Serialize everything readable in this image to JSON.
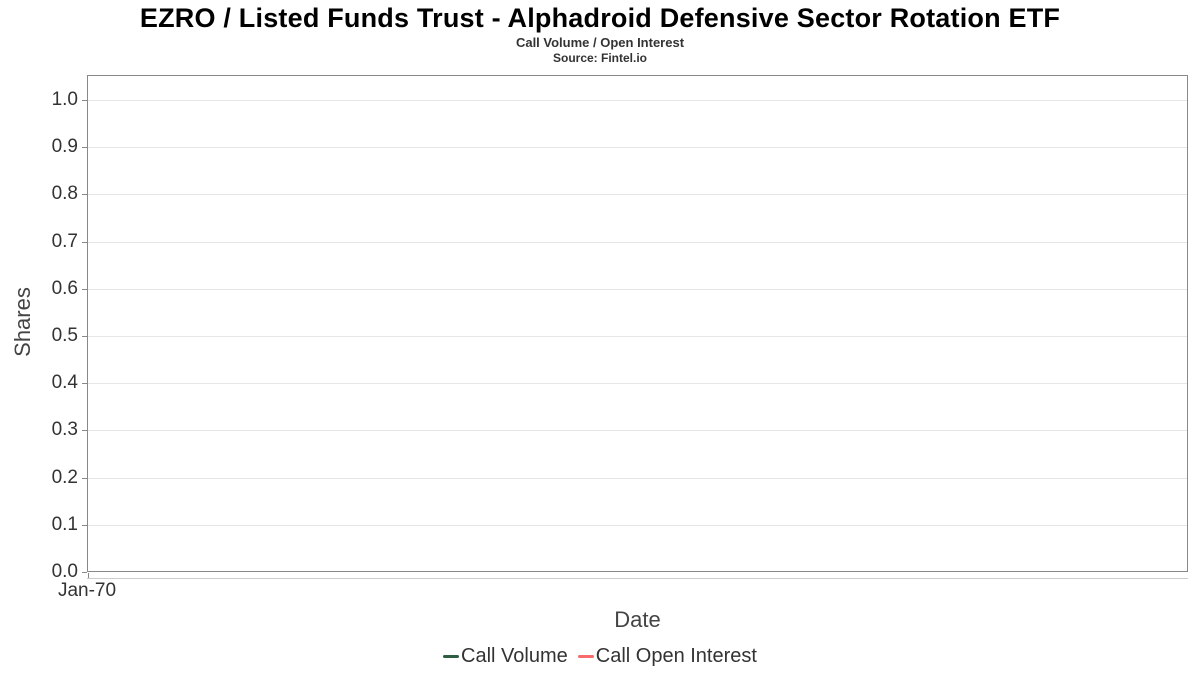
{
  "header": {
    "title": "EZRO / Listed Funds Trust - Alphadroid Defensive Sector Rotation ETF",
    "subtitle": "Call Volume / Open Interest",
    "source": "Source: Fintel.io"
  },
  "chart_data": {
    "type": "line",
    "title": "EZRO / Listed Funds Trust - Alphadroid Defensive Sector Rotation ETF",
    "subtitle": "Call Volume / Open Interest",
    "source": "Source: Fintel.io",
    "xlabel": "Date",
    "ylabel": "Shares",
    "ylim": [
      0.0,
      1.0
    ],
    "y_ticks": [
      0.0,
      0.1,
      0.2,
      0.3,
      0.4,
      0.5,
      0.6,
      0.7,
      0.8,
      0.9,
      1.0
    ],
    "y_tick_labels": [
      "0.0",
      "0.1",
      "0.2",
      "0.3",
      "0.4",
      "0.5",
      "0.6",
      "0.7",
      "0.8",
      "0.9",
      "1.0"
    ],
    "x_tick_labels": [
      "Jan-70"
    ],
    "grid": "horizontal",
    "legend_position": "bottom",
    "series": [
      {
        "name": "Call Volume",
        "color": "#2e5e41",
        "x": [],
        "values": []
      },
      {
        "name": "Call Open Interest",
        "color": "#f86c6b",
        "x": [],
        "values": []
      }
    ]
  },
  "colors": {
    "background": "#ffffff",
    "plot_border": "#888888",
    "gridline": "#e6e6e6",
    "axis_line": "#cccccc",
    "tick_label": "#333333",
    "axis_title": "#444444",
    "title": "#000000",
    "legend_text": "#333333"
  }
}
